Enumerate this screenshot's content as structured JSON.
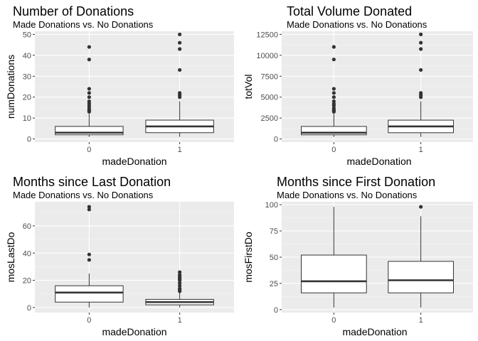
{
  "chart_data": [
    {
      "type": "boxplot",
      "title": "Number of Donations",
      "subtitle": "Made Donations vs. No Donations",
      "xlabel": "madeDonation",
      "ylabel": "numDonations",
      "categories": [
        "0",
        "1"
      ],
      "ylim": [
        -1.5,
        51.5
      ],
      "yticks": [
        0,
        10,
        20,
        30,
        40,
        50
      ],
      "ytick_labels": [
        "0",
        "10",
        "20",
        "30",
        "40",
        "50"
      ],
      "grid": true,
      "boxes": [
        {
          "category": "0",
          "min": 1,
          "q1": 2,
          "median": 3,
          "q3": 6,
          "max": 12,
          "outliers": [
            13,
            13.5,
            14,
            15,
            16,
            17,
            18,
            20,
            22,
            24,
            38,
            44
          ]
        },
        {
          "category": "1",
          "min": 1,
          "q1": 3,
          "median": 6,
          "q3": 9,
          "max": 18,
          "outliers": [
            20,
            21,
            22,
            33,
            43,
            46,
            50
          ]
        }
      ]
    },
    {
      "type": "boxplot",
      "title": "Total Volume Donated",
      "subtitle": "Made Donations vs. No Donations",
      "xlabel": "madeDonation",
      "ylabel": "totVol",
      "categories": [
        "0",
        "1"
      ],
      "ylim": [
        -370,
        12870
      ],
      "yticks": [
        0,
        2500,
        5000,
        7500,
        10000,
        12500
      ],
      "ytick_labels": [
        "0",
        "2500",
        "5000",
        "7500",
        "10000",
        "12500"
      ],
      "grid": true,
      "boxes": [
        {
          "category": "0",
          "min": 250,
          "q1": 500,
          "median": 750,
          "q3": 1500,
          "max": 3000,
          "outliers": [
            3250,
            3400,
            3500,
            3700,
            4000,
            4200,
            4500,
            5000,
            5500,
            6000,
            9500,
            11000
          ]
        },
        {
          "category": "1",
          "min": 250,
          "q1": 750,
          "median": 1500,
          "q3": 2250,
          "max": 4500,
          "outliers": [
            5000,
            5250,
            5500,
            8250,
            10750,
            11500,
            12500
          ]
        }
      ]
    },
    {
      "type": "boxplot",
      "title": "Months since Last Donation",
      "subtitle": "Made Donations vs. No Donations",
      "xlabel": "madeDonation",
      "ylabel": "mosLastDo",
      "categories": [
        "0",
        "1"
      ],
      "ylim": [
        -3.7,
        77.7
      ],
      "yticks": [
        0,
        20,
        40,
        60
      ],
      "ytick_labels": [
        "0",
        "20",
        "40",
        "60"
      ],
      "grid": true,
      "boxes": [
        {
          "category": "0",
          "min": 0,
          "q1": 4,
          "median": 11,
          "q3": 16,
          "max": 25,
          "outliers": [
            35,
            39,
            72,
            74
          ]
        },
        {
          "category": "1",
          "min": 0,
          "q1": 2,
          "median": 4,
          "q3": 6,
          "max": 11,
          "outliers": [
            12,
            13,
            14,
            16,
            18,
            20,
            21,
            22,
            23,
            24,
            26
          ]
        }
      ]
    },
    {
      "type": "boxplot",
      "title": "Months since First Donation",
      "subtitle": "Made Donations vs. No Donations",
      "xlabel": "madeDonation",
      "ylabel": "mosFirstDo",
      "categories": [
        "0",
        "1"
      ],
      "ylim": [
        -2.8,
        102.8
      ],
      "yticks": [
        0,
        25,
        50,
        75,
        100
      ],
      "ytick_labels": [
        "0",
        "25",
        "50",
        "75",
        "100"
      ],
      "grid": true,
      "boxes": [
        {
          "category": "0",
          "min": 2,
          "q1": 16,
          "median": 27,
          "q3": 52,
          "max": 98,
          "outliers": []
        },
        {
          "category": "1",
          "min": 2,
          "q1": 16,
          "median": 28,
          "q3": 46,
          "max": 89,
          "outliers": [
            98
          ]
        }
      ]
    }
  ]
}
